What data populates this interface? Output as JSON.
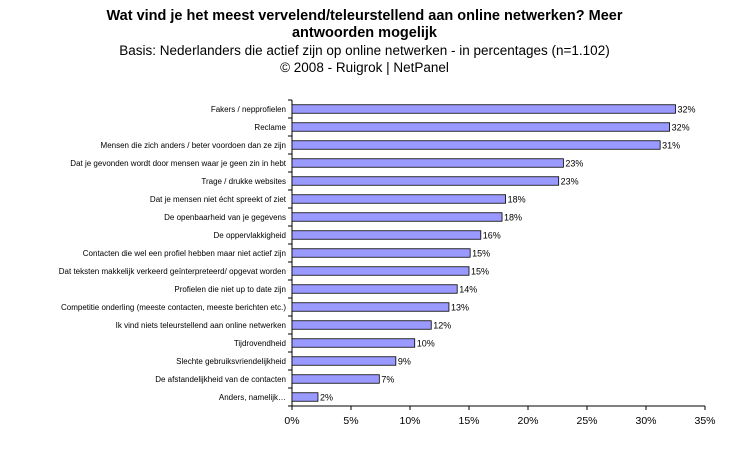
{
  "title_line1": "Wat vind je het meest vervelend/teleurstellend aan online netwerken?  Meer",
  "title_line2": "antwoorden mogelijk",
  "subtitle": "Basis: Nederlanders die actief zijn op online netwerken - in percentages (n=1.102)",
  "copyright": "©  2008 - Ruigrok | NetPanel",
  "chart_data": {
    "type": "bar",
    "orientation": "horizontal",
    "categories": [
      "Fakers / nepprofielen",
      "Reclame",
      "Mensen die zich anders / beter voordoen dan ze zijn",
      "Dat je gevonden wordt door mensen waar je geen zin in hebt",
      "Trage / drukke websites",
      "Dat je mensen niet écht spreekt of ziet",
      "De openbaarheid van je gegevens",
      "De oppervlakkigheid",
      "Contacten die wel een profiel hebben maar niet actief zijn",
      "Dat teksten makkelijk verkeerd geïnterpreteerd/ opgevat worden",
      "Profielen die niet up to date zijn",
      "Competitie onderling (meeste contacten, meeste berichten etc.)",
      "Ik vind niets teleurstellend aan online netwerken",
      "Tijdrovendheid",
      "Slechte gebruiksvriendelijkheid",
      "De afstandelijkheid van de contacten",
      "Anders, namelijk…"
    ],
    "values": [
      32.5,
      32.0,
      31.2,
      23.0,
      22.6,
      18.1,
      17.8,
      16.0,
      15.1,
      15.0,
      14.0,
      13.3,
      11.8,
      10.4,
      8.8,
      7.4,
      2.2
    ],
    "data_labels": [
      "32%",
      "32%",
      "31%",
      "23%",
      "23%",
      "18%",
      "18%",
      "16%",
      "15%",
      "15%",
      "14%",
      "13%",
      "12%",
      "10%",
      "9%",
      "7%",
      "2%"
    ],
    "x_ticks": [
      "0%",
      "5%",
      "10%",
      "15%",
      "20%",
      "25%",
      "30%",
      "35%"
    ],
    "xlim": [
      0,
      35
    ],
    "bar_color": "#9999ff",
    "grid": false,
    "legend": "none"
  }
}
